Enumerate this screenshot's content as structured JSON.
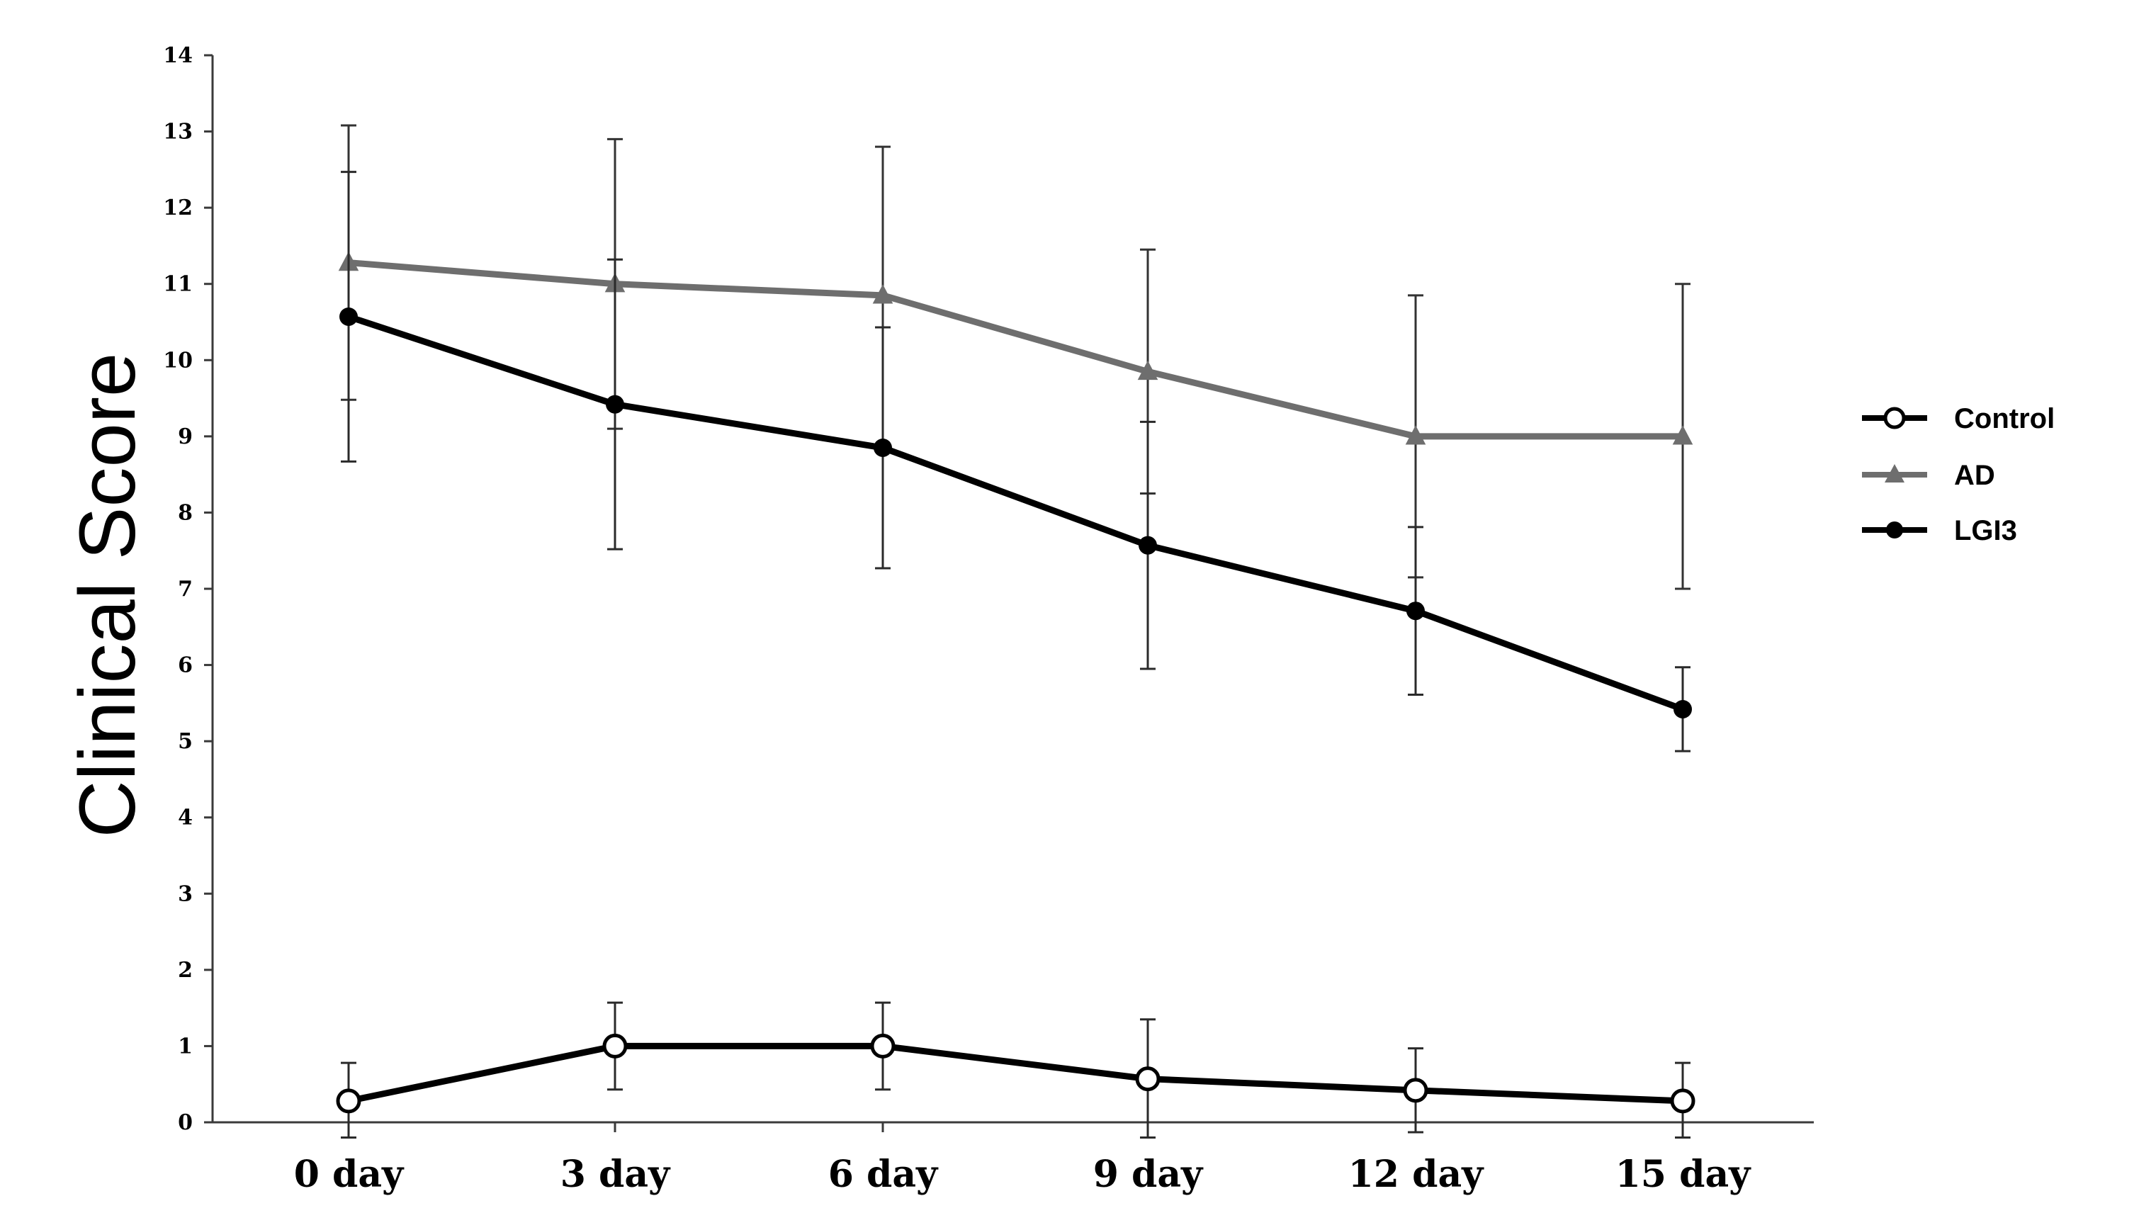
{
  "chart_data": {
    "type": "line",
    "title": "",
    "xlabel": "",
    "ylabel": "Clinical Score",
    "categories": [
      "0 day",
      "3 day",
      "6 day",
      "9 day",
      "12 day",
      "15 day"
    ],
    "ylim": [
      0,
      14
    ],
    "yticks": [
      0,
      1,
      2,
      3,
      4,
      5,
      6,
      7,
      8,
      9,
      10,
      11,
      12,
      13,
      14
    ],
    "grid": false,
    "legend_position": "right",
    "series": [
      {
        "name": "Control",
        "marker": "open-circle",
        "color": "#000000",
        "values": [
          0.28,
          1.0,
          1.0,
          0.57,
          0.42,
          0.28
        ],
        "error": [
          0.5,
          0.57,
          0.57,
          0.78,
          0.55,
          0.5
        ]
      },
      {
        "name": "AD",
        "marker": "triangle",
        "color": "#6e6e6e",
        "values": [
          11.28,
          11.0,
          10.85,
          9.85,
          9.0,
          9.0
        ],
        "error": [
          1.8,
          1.9,
          1.95,
          1.6,
          1.85,
          2.0
        ]
      },
      {
        "name": "LGI3",
        "marker": "filled-circle",
        "color": "#000000",
        "values": [
          10.57,
          9.42,
          8.85,
          7.57,
          6.71,
          5.42
        ],
        "error": [
          1.9,
          1.9,
          1.58,
          1.62,
          1.1,
          0.55
        ]
      }
    ]
  }
}
